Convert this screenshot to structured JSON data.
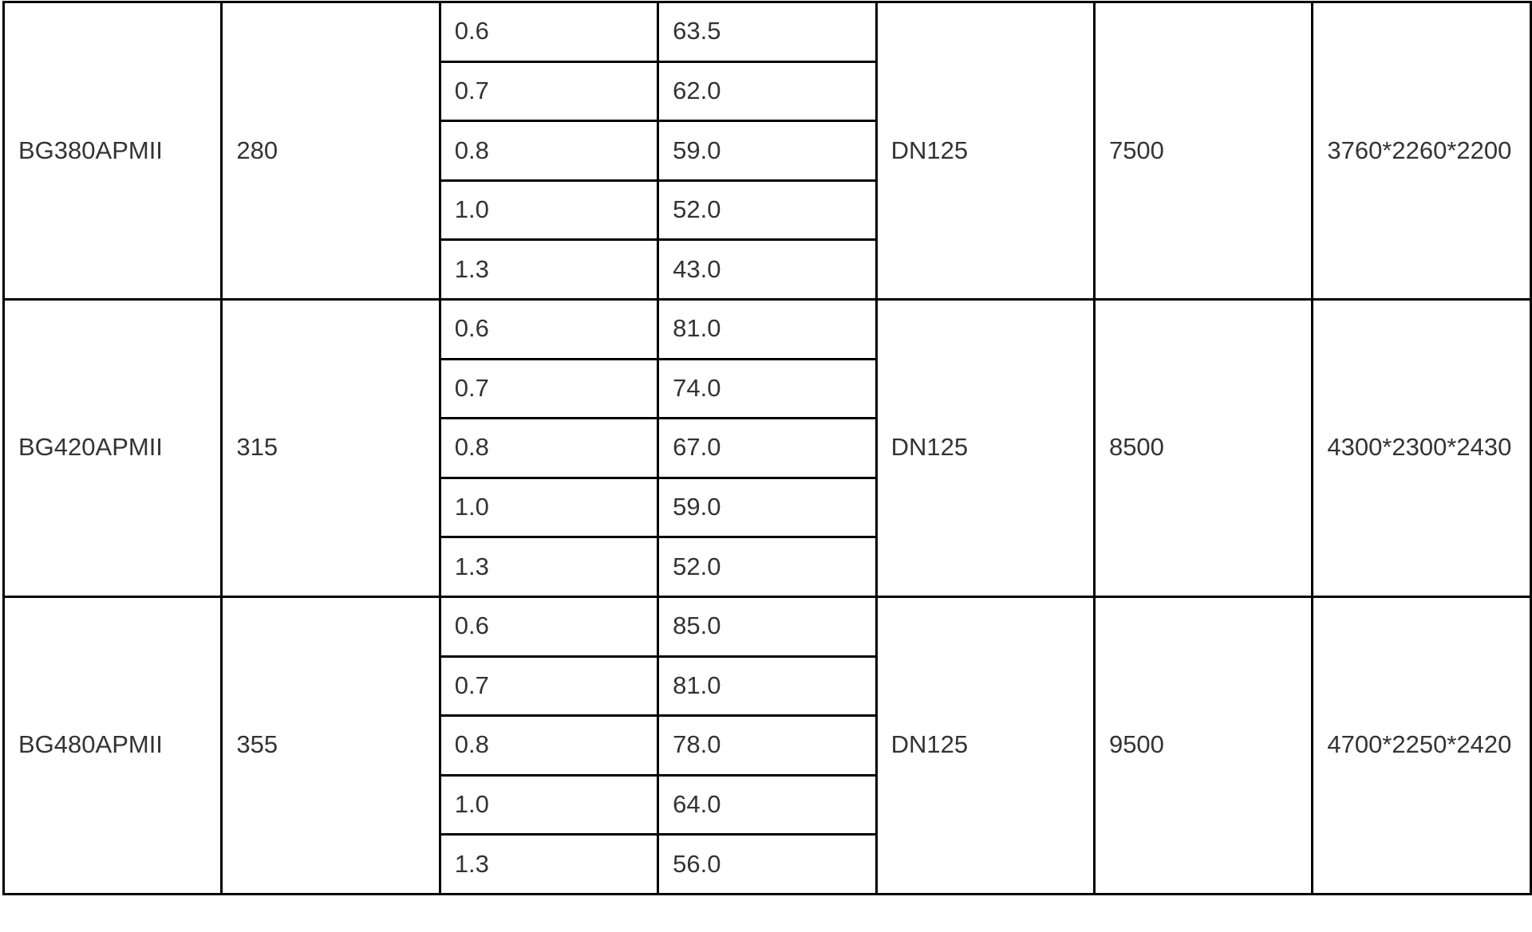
{
  "groups": [
    {
      "model": "BG380APMII",
      "power": "280",
      "rows": [
        [
          "0.6",
          "63.5"
        ],
        [
          "0.7",
          "62.0"
        ],
        [
          "0.8",
          "59.0"
        ],
        [
          "1.0",
          "52.0"
        ],
        [
          "1.3",
          "43.0"
        ]
      ],
      "outlet": "DN125",
      "weight": "7500",
      "dimensions": "3760*2260*2200"
    },
    {
      "model": "BG420APMII",
      "power": "315",
      "rows": [
        [
          "0.6",
          "81.0"
        ],
        [
          "0.7",
          "74.0"
        ],
        [
          "0.8",
          "67.0"
        ],
        [
          "1.0",
          "59.0"
        ],
        [
          "1.3",
          "52.0"
        ]
      ],
      "outlet": "DN125",
      "weight": "8500",
      "dimensions": "4300*2300*2430"
    },
    {
      "model": "BG480APMII",
      "power": "355",
      "rows": [
        [
          "0.6",
          "85.0"
        ],
        [
          "0.7",
          "81.0"
        ],
        [
          "0.8",
          "78.0"
        ],
        [
          "1.0",
          "64.0"
        ],
        [
          "1.3",
          "56.0"
        ]
      ],
      "outlet": "DN125",
      "weight": "9500",
      "dimensions": "4700*2250*2420"
    }
  ]
}
